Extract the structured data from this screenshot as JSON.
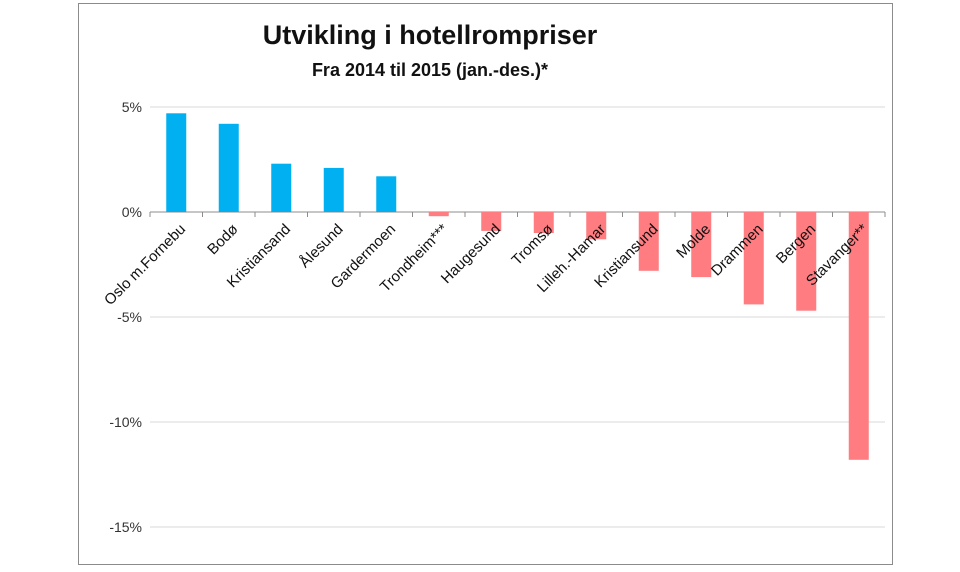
{
  "chart_data": {
    "type": "bar",
    "title": "Utvikling i hotellrompriser",
    "subtitle": "Fra 2014 til 2015 (jan.-des.)*",
    "categories": [
      "Oslo m.Fornebu",
      "Bodø",
      "Kristiansand",
      "Ålesund",
      "Gardermoen",
      "Trondheim***",
      "Haugesund",
      "Tromsø",
      "Lilleh.-Hamar",
      "Kristiansund",
      "Molde",
      "Drammen",
      "Bergen",
      "Stavanger**"
    ],
    "values": [
      4.7,
      4.2,
      2.3,
      2.1,
      1.7,
      -0.2,
      -0.9,
      -1.0,
      -1.3,
      -2.8,
      -3.1,
      -4.4,
      -4.7,
      -11.8
    ],
    "unit": "%",
    "ylim": [
      -15,
      5
    ],
    "yticks": [
      "5%",
      "0%",
      "-5%",
      "-10%",
      "-15%"
    ],
    "ytick_values": [
      5,
      0,
      -5,
      -10,
      -15
    ],
    "grid": true,
    "colors": {
      "positive": "#00b0f0",
      "negative": "#ff7c80",
      "grid": "#d9d9d9"
    }
  }
}
